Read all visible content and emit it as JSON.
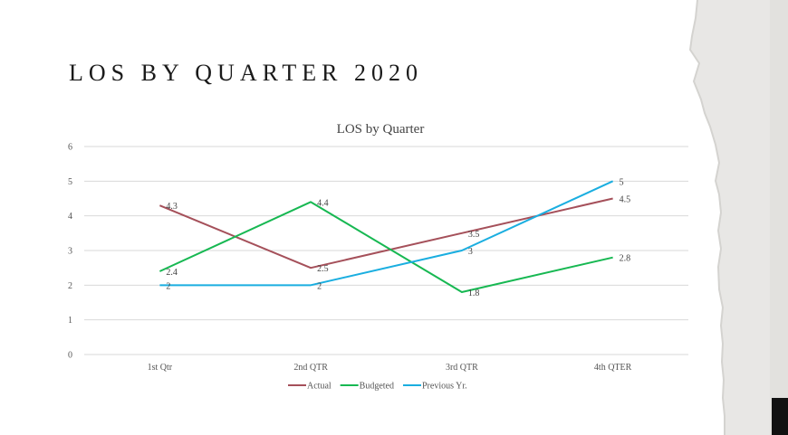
{
  "slide": {
    "title": "LOS BY QUARTER 2020"
  },
  "chart_data": {
    "type": "line",
    "title": "LOS by Quarter",
    "xlabel": "",
    "ylabel": "",
    "categories": [
      "1st Qtr",
      "2nd QTR",
      "3rd QTR",
      "4th QTER"
    ],
    "ylim": [
      0,
      6
    ],
    "yticks": [
      0,
      1,
      2,
      3,
      4,
      5,
      6
    ],
    "grid": true,
    "legend": "bottom",
    "series": [
      {
        "name": "Actual",
        "values": [
          4.3,
          2.5,
          3.5,
          4.5
        ],
        "color": "#a5505a"
      },
      {
        "name": "Budgeted",
        "values": [
          2.4,
          4.4,
          1.8,
          2.8
        ],
        "color": "#17b852"
      },
      {
        "name": "Previous Yr.",
        "values": [
          2,
          2,
          3,
          5
        ],
        "color": "#1aaee0"
      }
    ]
  }
}
